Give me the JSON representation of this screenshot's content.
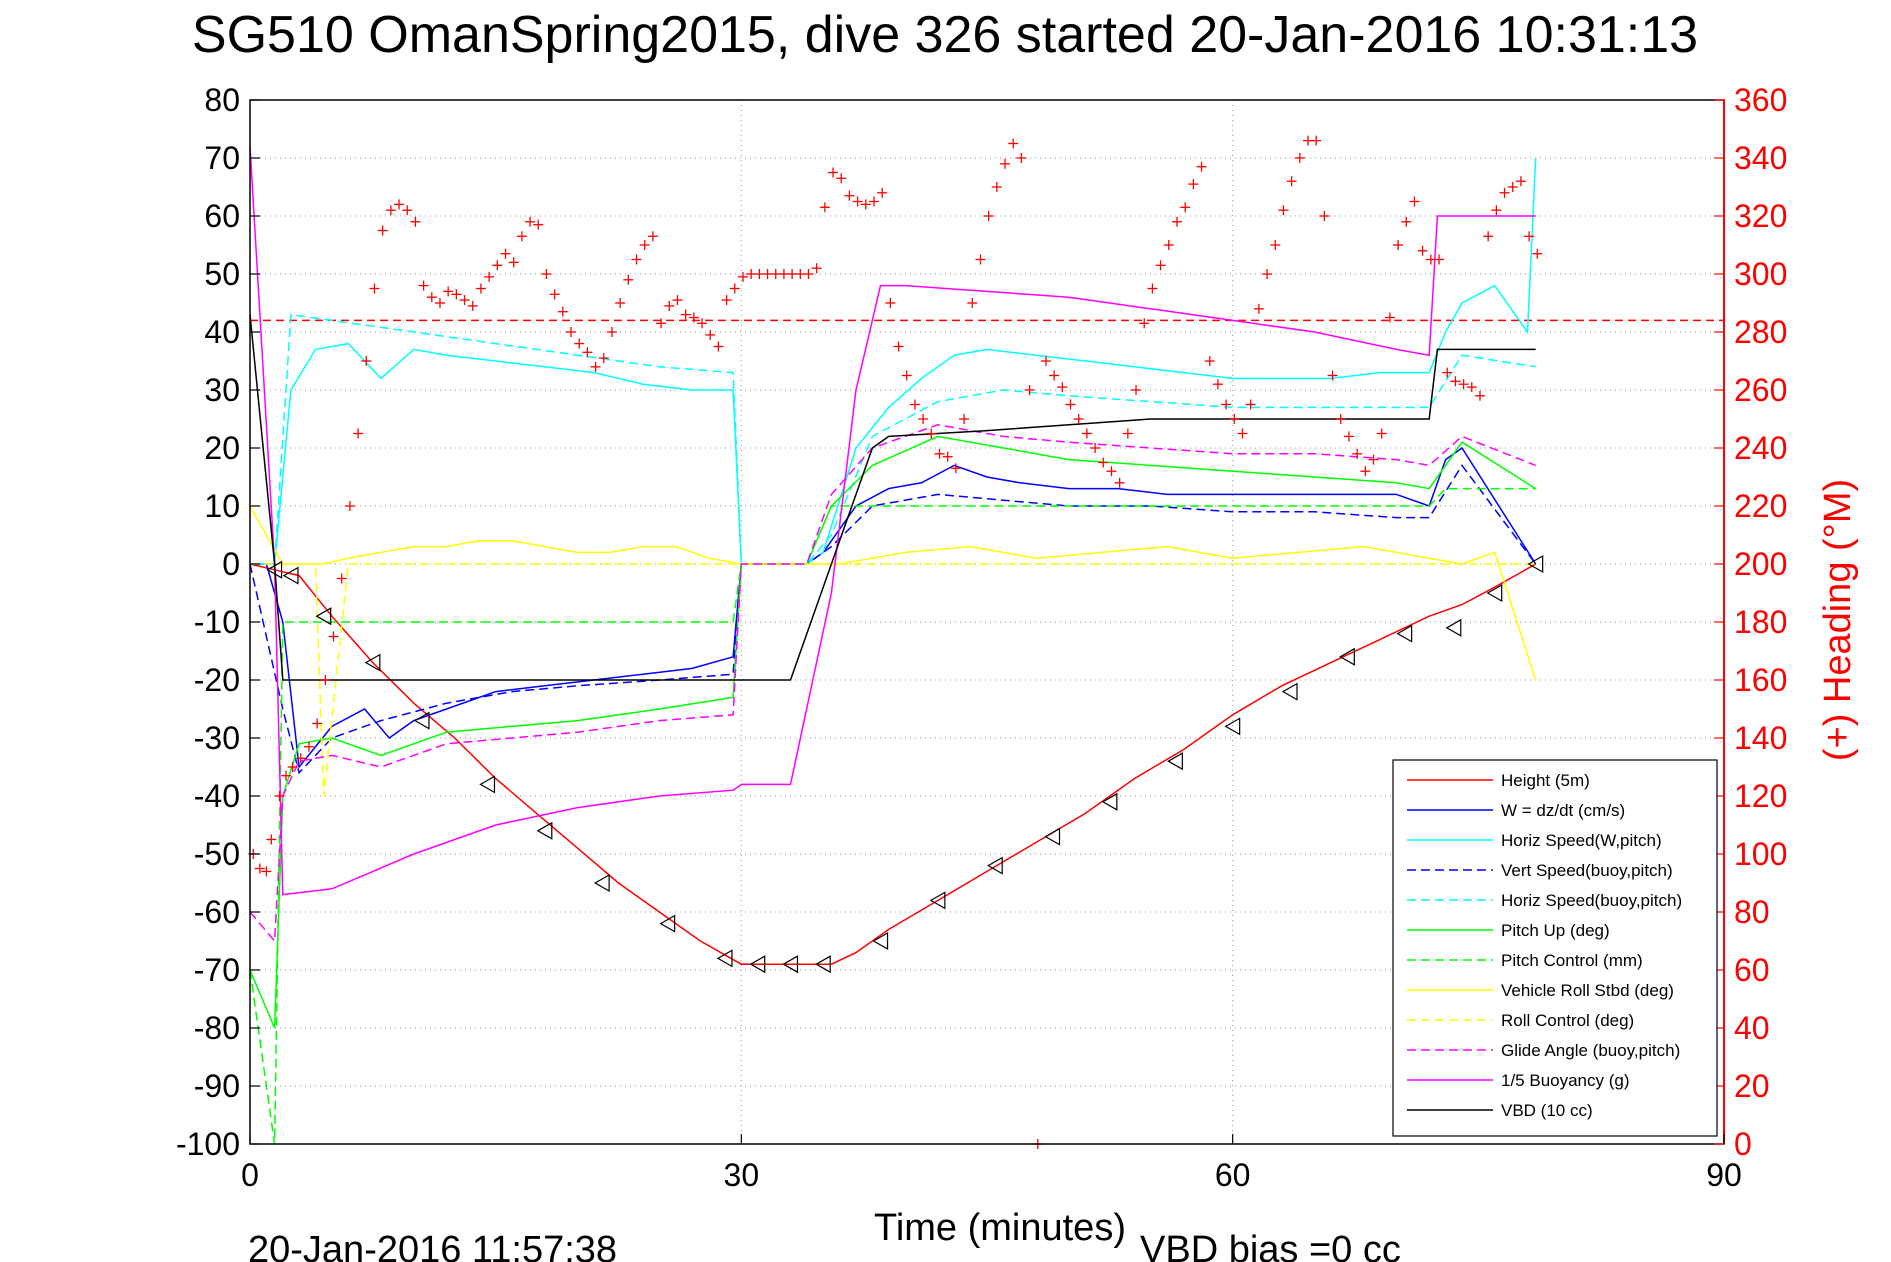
{
  "chart_data": {
    "type": "line",
    "title": "SG510 OmanSpring2015, dive 326 started 20-Jan-2016 10:31:13",
    "xlabel": "Time (minutes)",
    "ylabel_right": "(+) Heading (°M)",
    "footer_left": "20-Jan-2016 11:57:38",
    "footer_right": "VBD bias =0 cc",
    "xlim": [
      0,
      90
    ],
    "ylim": [
      -100,
      80
    ],
    "ylim_right": [
      0,
      360
    ],
    "xticks": [
      "0",
      "30",
      "60",
      "90"
    ],
    "yticks": [
      "80",
      "70",
      "60",
      "50",
      "40",
      "30",
      "20",
      "10",
      "0",
      "-10",
      "-20",
      "-30",
      "-40",
      "-50",
      "-60",
      "-70",
      "-80",
      "-90",
      "-100"
    ],
    "yticks_right": [
      "360",
      "340",
      "320",
      "300",
      "280",
      "260",
      "240",
      "220",
      "200",
      "180",
      "160",
      "140",
      "120",
      "100",
      "80",
      "60",
      "40",
      "20",
      "0"
    ],
    "grid": true,
    "legend_position": "lower-right",
    "heading_reference_line": 284,
    "series": [
      {
        "name": "Height (5m)",
        "color": "#ff0000",
        "dash": "solid",
        "x": [
          0,
          1.5,
          3,
          5,
          7.5,
          10,
          12.5,
          15,
          17.5,
          20,
          22.5,
          25,
          27.5,
          30,
          32,
          34,
          35.5,
          37,
          39,
          42,
          45,
          48,
          51,
          54,
          57,
          60,
          63,
          66,
          69,
          72,
          74,
          76,
          78.5
        ],
        "y": [
          0,
          -1,
          -2,
          -9,
          -17,
          -24,
          -30,
          -37,
          -43,
          -49,
          -55,
          -60,
          -65,
          -69,
          -69,
          -69,
          -69,
          -67,
          -63,
          -58,
          -53,
          -48,
          -43,
          -37,
          -32,
          -26,
          -21,
          -17,
          -13,
          -9,
          -7,
          -4,
          0
        ]
      },
      {
        "name": "W = dz/dt (cm/s)",
        "color": "#0000ff",
        "dash": "solid",
        "x": [
          0,
          1,
          2,
          3,
          5,
          7,
          8.5,
          10,
          12,
          15,
          18,
          21,
          24,
          27,
          29.5,
          30,
          34,
          35,
          37,
          39,
          41,
          43,
          45,
          47,
          50,
          53,
          56,
          58,
          61,
          64,
          67,
          70,
          72,
          73,
          74,
          78.5
        ],
        "y": [
          0,
          0,
          -10,
          -35,
          -28,
          -25,
          -30,
          -27,
          -25,
          -22,
          -21,
          -20,
          -19,
          -18,
          -16,
          0,
          0,
          2,
          10,
          13,
          14,
          17,
          15,
          14,
          13,
          13,
          12,
          12,
          12,
          12,
          12,
          12,
          10,
          18,
          20,
          0
        ]
      },
      {
        "name": "Horiz Speed(W,pitch)",
        "color": "#00ffff",
        "dash": "solid",
        "x": [
          0,
          1.5,
          2.5,
          4,
          6,
          8,
          10,
          12,
          15,
          18,
          21,
          24,
          27,
          29.5,
          30,
          34,
          35,
          37,
          39,
          41,
          43,
          45,
          48,
          51,
          54,
          57,
          60,
          63,
          66,
          69,
          72,
          73,
          74,
          76,
          78,
          78.5
        ],
        "y": [
          0,
          0,
          30,
          37,
          38,
          32,
          37,
          36,
          35,
          34,
          33,
          31,
          30,
          30,
          0,
          0,
          2,
          20,
          27,
          32,
          36,
          37,
          36,
          35,
          34,
          33,
          32,
          32,
          32,
          33,
          33,
          40,
          45,
          48,
          40,
          70
        ]
      },
      {
        "name": "Vert Speed(buoy,pitch)",
        "color": "#0000ff",
        "dash": "dash",
        "x": [
          0,
          2,
          3,
          5,
          8,
          12,
          16,
          20,
          25,
          29.5,
          30,
          34,
          35.5,
          38,
          42,
          46,
          50,
          55,
          60,
          65,
          70,
          72,
          74,
          78.5
        ],
        "y": [
          0,
          -25,
          -36,
          -30,
          -27,
          -24,
          -22,
          -21,
          -20,
          -19,
          0,
          0,
          3,
          10,
          12,
          11,
          10,
          10,
          9,
          9,
          8,
          8,
          17,
          0
        ]
      },
      {
        "name": "Horiz Speed(buoy,pitch)",
        "color": "#00ffff",
        "dash": "dash",
        "x": [
          0,
          1.5,
          2.5,
          5,
          10,
          15,
          20,
          25,
          29.5,
          30,
          34,
          35.5,
          38,
          42,
          46,
          50,
          55,
          60,
          65,
          70,
          72,
          74,
          78.5
        ],
        "y": [
          0,
          0,
          43,
          42,
          40,
          38,
          36,
          34,
          33,
          0,
          0,
          5,
          22,
          28,
          30,
          29,
          28,
          27,
          27,
          27,
          27,
          36,
          34
        ]
      },
      {
        "name": "Pitch Up (deg)",
        "color": "#00ff00",
        "dash": "solid",
        "x": [
          0,
          1.5,
          2,
          3,
          5,
          8,
          12,
          16,
          20,
          25,
          29.5,
          30,
          34,
          35.5,
          38,
          42,
          46,
          50,
          55,
          60,
          65,
          70,
          72,
          74,
          78.5
        ],
        "y": [
          -70,
          -80,
          -40,
          -31,
          -30,
          -33,
          -29,
          -28,
          -27,
          -25,
          -23,
          0,
          0,
          10,
          17,
          22,
          20,
          18,
          17,
          16,
          15,
          14,
          13,
          21,
          13
        ]
      },
      {
        "name": "Pitch Control (mm)",
        "color": "#00ff00",
        "dash": "dash",
        "x": [
          0,
          1.5,
          2,
          5,
          10,
          20,
          29.5,
          30,
          34,
          35.5,
          38,
          45,
          55,
          65,
          72,
          73,
          78.5
        ],
        "y": [
          -70,
          -100,
          -10,
          -10,
          -10,
          -10,
          -10,
          0,
          0,
          10,
          10,
          10,
          10,
          10,
          10,
          13,
          13
        ]
      },
      {
        "name": "Vehicle Roll Stbd (deg)",
        "color": "#ffff00",
        "dash": "solid",
        "x": [
          0,
          2,
          4,
          4.5,
          6,
          8,
          10,
          12,
          14,
          16,
          18,
          20,
          22,
          24,
          26,
          28,
          30,
          34,
          36,
          40,
          44,
          48,
          52,
          56,
          60,
          64,
          68,
          72,
          74,
          76,
          78.5
        ],
        "y": [
          10,
          0,
          0,
          0,
          1,
          2,
          3,
          3,
          4,
          4,
          3,
          2,
          2,
          3,
          3,
          1,
          0,
          0,
          0,
          2,
          3,
          1,
          2,
          3,
          1,
          2,
          3,
          1,
          0,
          2,
          -20
        ]
      },
      {
        "name": "Roll Control (deg)",
        "color": "#ffff00",
        "dash": "dash",
        "x": [
          0,
          2,
          4,
          4.5,
          6,
          10,
          14,
          18,
          22,
          26,
          29.5,
          30,
          35,
          39,
          45,
          50,
          55,
          60,
          65,
          70,
          72,
          74,
          78.5
        ],
        "y": [
          0,
          0,
          0,
          -40,
          0,
          0,
          0,
          0,
          0,
          0,
          0,
          0,
          0,
          0,
          0,
          0,
          0,
          0,
          0,
          0,
          0,
          0,
          0
        ]
      },
      {
        "name": "Glide Angle (buoy,pitch)",
        "color": "#ff00ff",
        "dash": "dash",
        "x": [
          0,
          1.5,
          2,
          3,
          5,
          8,
          12,
          16,
          20,
          25,
          29.5,
          30,
          34,
          35.5,
          38,
          42,
          46,
          50,
          55,
          60,
          65,
          70,
          72,
          74,
          78.5
        ],
        "y": [
          -60,
          -65,
          -40,
          -34,
          -33,
          -35,
          -31,
          -30,
          -29,
          -27,
          -26,
          0,
          0,
          12,
          20,
          24,
          22,
          21,
          20,
          19,
          19,
          18,
          17,
          22,
          17
        ]
      },
      {
        "name": "1/5 Buoyancy (g)",
        "color": "#ff00ff",
        "dash": "solid",
        "x": [
          0,
          1.5,
          2,
          5,
          10,
          15,
          20,
          25,
          29.5,
          30,
          33,
          35.5,
          37,
          38.5,
          40,
          45,
          50,
          55,
          60,
          65,
          70,
          72,
          72.5,
          78.5
        ],
        "y": [
          72,
          0,
          -57,
          -56,
          -50,
          -45,
          -42,
          -40,
          -39,
          -38,
          -38,
          -5,
          30,
          48,
          48,
          47,
          46,
          44,
          42,
          40,
          37,
          36,
          60,
          60
        ]
      },
      {
        "name": "VBD (10 cc)",
        "color": "#000000",
        "dash": "solid",
        "x": [
          0,
          1.5,
          2,
          20,
          32,
          33,
          35.5,
          38,
          39,
          45,
          55,
          60,
          65,
          69,
          72,
          72.5,
          78.5
        ],
        "y": [
          43,
          0,
          -20,
          -20,
          -20,
          -20,
          0,
          20,
          22,
          23,
          25,
          25,
          25,
          25,
          25,
          37,
          37
        ]
      }
    ],
    "heading_points": {
      "color": "#ff0000",
      "marker": "+",
      "x": [
        0.2,
        0.6,
        1.0,
        1.3,
        1.8,
        2.2,
        2.6,
        3.1,
        3.6,
        4.1,
        4.6,
        5.1,
        5.6,
        6.1,
        6.6,
        7.1,
        7.6,
        8.1,
        8.6,
        9.1,
        9.6,
        10.1,
        10.6,
        11.1,
        11.6,
        12.1,
        12.6,
        13.1,
        13.6,
        14.1,
        14.6,
        15.1,
        15.6,
        16.1,
        16.6,
        17.1,
        17.6,
        18.1,
        18.6,
        19.1,
        19.6,
        20.1,
        20.6,
        21.1,
        21.6,
        22.1,
        22.6,
        23.1,
        23.6,
        24.1,
        24.6,
        25.1,
        25.6,
        26.1,
        26.6,
        27.1,
        27.6,
        28.1,
        28.6,
        29.1,
        29.6,
        30.1,
        30.6,
        31.1,
        31.6,
        32.1,
        32.6,
        33.1,
        33.6,
        34.1,
        34.6,
        35.1,
        35.6,
        36.1,
        36.6,
        37.1,
        37.6,
        38.1,
        38.6,
        39.1,
        39.6,
        40.1,
        40.6,
        41.1,
        41.6,
        42.1,
        42.6,
        43.1,
        43.6,
        44.1,
        44.6,
        45.1,
        45.6,
        46.1,
        46.6,
        47.1,
        47.6,
        48.1,
        48.6,
        49.1,
        49.6,
        50.1,
        50.6,
        51.1,
        51.6,
        52.1,
        52.6,
        53.1,
        53.6,
        54.1,
        54.6,
        55.1,
        55.6,
        56.1,
        56.6,
        57.1,
        57.6,
        58.1,
        58.6,
        59.1,
        59.6,
        60.1,
        60.6,
        61.1,
        61.6,
        62.1,
        62.6,
        63.1,
        63.6,
        64.1,
        64.6,
        65.1,
        65.6,
        66.1,
        66.6,
        67.1,
        67.6,
        68.1,
        68.6,
        69.1,
        69.6,
        70.1,
        70.6,
        71.1,
        71.6,
        72.1,
        72.6,
        73.1,
        73.6,
        74.1,
        74.6,
        75.1,
        75.6,
        76.1,
        76.6,
        77.1,
        77.6,
        78.1,
        78.6
      ],
      "y": [
        100,
        95,
        94,
        105,
        120,
        127,
        130,
        133,
        137,
        145,
        160,
        175,
        195,
        220,
        245,
        270,
        295,
        315,
        322,
        324,
        322,
        318,
        296,
        292,
        290,
        294,
        293,
        291,
        289,
        295,
        299,
        303,
        307,
        304,
        313,
        318,
        317,
        300,
        293,
        287,
        280,
        276,
        273,
        268,
        271,
        280,
        290,
        298,
        305,
        310,
        313,
        283,
        289,
        291,
        286,
        285,
        283,
        279,
        275,
        291,
        295,
        299,
        300,
        300,
        300,
        300,
        300,
        300,
        300,
        300,
        302,
        323,
        335,
        333,
        327,
        325,
        324,
        325,
        328,
        290,
        275,
        265,
        255,
        250,
        245,
        238,
        237,
        233,
        250,
        290,
        305,
        320,
        330,
        338,
        345,
        340,
        260,
        0,
        270,
        265,
        261,
        255,
        250,
        245,
        240,
        235,
        232,
        228,
        245,
        260,
        283,
        295,
        303,
        310,
        318,
        323,
        331,
        337,
        270,
        262,
        255,
        250,
        245,
        255,
        288,
        300,
        310,
        322,
        332,
        340,
        346,
        346,
        320,
        265,
        250,
        244,
        238,
        232,
        236,
        245,
        285,
        310,
        318,
        325,
        308,
        305,
        305,
        266,
        263,
        262,
        261,
        258,
        313,
        322,
        328,
        330,
        332,
        313,
        307
      ]
    },
    "height_markers": {
      "color": "#000000",
      "x": [
        1.5,
        2.5,
        4.5,
        7.5,
        10.5,
        14.5,
        18,
        21.5,
        25.5,
        29,
        31,
        33,
        35,
        38.5,
        42,
        45.5,
        49,
        52.5,
        56.5,
        60,
        63.5,
        67,
        70.5,
        73.5,
        76,
        78.5
      ],
      "y": [
        -1,
        -2,
        -9,
        -17,
        -27,
        -38,
        -46,
        -55,
        -62,
        -68,
        -69,
        -69,
        -69,
        -65,
        -58,
        -52,
        -47,
        -41,
        -34,
        -28,
        -22,
        -16,
        -12,
        -11,
        -5,
        0
      ]
    }
  }
}
